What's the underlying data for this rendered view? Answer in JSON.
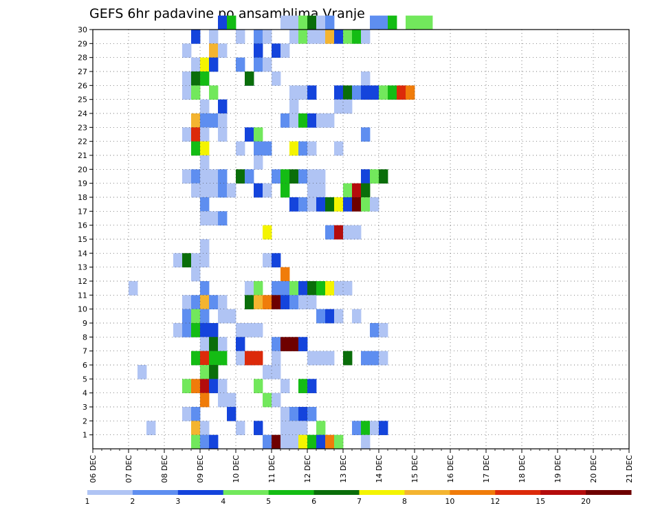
{
  "chart_data": {
    "type": "heatmap",
    "title": "GEFS 6hr padavine po ansamblima Vranje",
    "xlabel": "",
    "ylabel": "",
    "x_ticks": [
      "06 DEC",
      "07 DEC",
      "08 DEC",
      "09 DEC",
      "10 DEC",
      "11 DEC",
      "12 DEC",
      "13 DEC",
      "14 DEC",
      "15 DEC",
      "16 DEC",
      "17 DEC",
      "18 DEC",
      "19 DEC",
      "20 DEC",
      "21 DEC"
    ],
    "y_ticks": [
      "1",
      "2",
      "3",
      "4",
      "5",
      "6",
      "7",
      "8",
      "9",
      "10",
      "11",
      "12",
      "13",
      "14",
      "15",
      "16",
      "17",
      "18",
      "19",
      "20",
      "21",
      "22",
      "23",
      "24",
      "25",
      "26",
      "27",
      "28",
      "29",
      "30"
    ],
    "x_range_days": [
      0,
      15
    ],
    "y_range": [
      0,
      30
    ],
    "time_step_hours": 6,
    "grid": "dotted",
    "colorbar": {
      "labels": [
        "1",
        "2",
        "3",
        "4",
        "5",
        "6",
        "7",
        "8",
        "10",
        "12",
        "15",
        "20"
      ],
      "colors": [
        "#b0c4f4",
        "#5e8ef0",
        "#1444dc",
        "#72e85c",
        "#14bc14",
        "#0a6e0a",
        "#f4f400",
        "#f4b430",
        "#f07c0a",
        "#dc2a0a",
        "#b40c0c",
        "#6e0000"
      ]
    },
    "cells": [
      [
        30,
        14,
        2
      ],
      [
        30,
        15,
        4
      ],
      [
        30,
        21,
        0
      ],
      [
        30,
        22,
        0
      ],
      [
        30,
        23,
        3
      ],
      [
        30,
        24,
        5
      ],
      [
        30,
        25,
        0
      ],
      [
        30,
        26,
        1
      ],
      [
        30,
        31,
        1
      ],
      [
        30,
        32,
        1
      ],
      [
        30,
        33,
        4
      ],
      [
        30,
        35,
        3
      ],
      [
        30,
        36,
        3
      ],
      [
        30,
        37,
        3
      ],
      [
        29,
        11,
        2
      ],
      [
        29,
        13,
        0
      ],
      [
        29,
        16,
        0
      ],
      [
        29,
        18,
        1
      ],
      [
        29,
        19,
        0
      ],
      [
        29,
        22,
        0
      ],
      [
        29,
        23,
        3
      ],
      [
        29,
        24,
        0
      ],
      [
        29,
        25,
        0
      ],
      [
        29,
        26,
        7
      ],
      [
        29,
        27,
        2
      ],
      [
        29,
        28,
        3
      ],
      [
        29,
        29,
        4
      ],
      [
        29,
        30,
        0
      ],
      [
        28,
        10,
        0
      ],
      [
        28,
        13,
        7
      ],
      [
        28,
        14,
        0
      ],
      [
        28,
        18,
        2
      ],
      [
        28,
        20,
        2
      ],
      [
        28,
        21,
        0
      ],
      [
        27,
        11,
        0
      ],
      [
        27,
        12,
        6
      ],
      [
        27,
        13,
        2
      ],
      [
        27,
        16,
        1
      ],
      [
        27,
        18,
        1
      ],
      [
        27,
        19,
        0
      ],
      [
        26,
        10,
        0
      ],
      [
        26,
        11,
        5
      ],
      [
        26,
        12,
        0
      ],
      [
        26,
        12,
        4
      ],
      [
        26,
        17,
        2
      ],
      [
        26,
        17,
        5
      ],
      [
        26,
        20,
        0
      ],
      [
        26,
        30,
        0
      ],
      [
        25,
        10,
        0
      ],
      [
        25,
        11,
        3
      ],
      [
        25,
        13,
        3
      ],
      [
        25,
        22,
        0
      ],
      [
        25,
        23,
        0
      ],
      [
        25,
        24,
        2
      ],
      [
        25,
        27,
        2
      ],
      [
        25,
        28,
        5
      ],
      [
        25,
        29,
        1
      ],
      [
        25,
        30,
        2
      ],
      [
        25,
        31,
        2
      ],
      [
        25,
        32,
        3
      ],
      [
        25,
        33,
        4
      ],
      [
        25,
        34,
        9
      ],
      [
        25,
        35,
        8
      ],
      [
        24,
        12,
        0
      ],
      [
        24,
        14,
        2
      ],
      [
        24,
        22,
        0
      ],
      [
        24,
        27,
        0
      ],
      [
        24,
        28,
        0
      ],
      [
        23,
        11,
        3
      ],
      [
        23,
        11,
        7
      ],
      [
        23,
        12,
        5
      ],
      [
        23,
        12,
        1
      ],
      [
        23,
        13,
        1
      ],
      [
        23,
        14,
        0
      ],
      [
        23,
        21,
        1
      ],
      [
        23,
        22,
        0
      ],
      [
        23,
        23,
        4
      ],
      [
        23,
        24,
        2
      ],
      [
        23,
        25,
        0
      ],
      [
        23,
        26,
        0
      ],
      [
        22,
        10,
        0
      ],
      [
        22,
        11,
        9
      ],
      [
        22,
        12,
        0
      ],
      [
        22,
        14,
        0
      ],
      [
        22,
        17,
        2
      ],
      [
        22,
        18,
        3
      ],
      [
        22,
        30,
        1
      ],
      [
        21,
        11,
        4
      ],
      [
        21,
        12,
        6
      ],
      [
        21,
        16,
        0
      ],
      [
        21,
        18,
        1
      ],
      [
        21,
        19,
        1
      ],
      [
        21,
        22,
        6
      ],
      [
        21,
        23,
        1
      ],
      [
        21,
        24,
        0
      ],
      [
        21,
        27,
        0
      ],
      [
        20,
        12,
        0
      ],
      [
        20,
        18,
        0
      ],
      [
        19,
        10,
        0
      ],
      [
        19,
        11,
        1
      ],
      [
        19,
        12,
        0
      ],
      [
        19,
        13,
        0
      ],
      [
        19,
        14,
        1
      ],
      [
        19,
        16,
        5
      ],
      [
        19,
        17,
        1
      ],
      [
        19,
        20,
        1
      ],
      [
        19,
        21,
        4
      ],
      [
        19,
        22,
        5
      ],
      [
        19,
        23,
        1
      ],
      [
        19,
        24,
        0
      ],
      [
        19,
        25,
        0
      ],
      [
        19,
        30,
        2
      ],
      [
        19,
        31,
        3
      ],
      [
        19,
        32,
        5
      ],
      [
        18,
        11,
        0
      ],
      [
        18,
        12,
        0
      ],
      [
        18,
        13,
        0
      ],
      [
        18,
        14,
        1
      ],
      [
        18,
        15,
        0
      ],
      [
        18,
        18,
        2
      ],
      [
        18,
        19,
        0
      ],
      [
        18,
        21,
        4
      ],
      [
        18,
        24,
        0
      ],
      [
        18,
        25,
        0
      ],
      [
        18,
        28,
        3
      ],
      [
        18,
        29,
        10
      ],
      [
        18,
        30,
        5
      ],
      [
        17,
        12,
        1
      ],
      [
        17,
        22,
        2
      ],
      [
        17,
        23,
        1
      ],
      [
        17,
        24,
        0
      ],
      [
        17,
        25,
        2
      ],
      [
        17,
        26,
        5
      ],
      [
        17,
        27,
        6
      ],
      [
        17,
        28,
        2
      ],
      [
        17,
        29,
        11
      ],
      [
        17,
        30,
        3
      ],
      [
        17,
        31,
        0
      ],
      [
        16,
        12,
        0
      ],
      [
        16,
        13,
        0
      ],
      [
        16,
        14,
        1
      ],
      [
        15,
        19,
        6
      ],
      [
        15,
        26,
        1
      ],
      [
        15,
        27,
        10
      ],
      [
        15,
        28,
        0
      ],
      [
        15,
        29,
        0
      ],
      [
        14,
        12,
        0
      ],
      [
        13,
        9,
        0
      ],
      [
        13,
        10,
        5
      ],
      [
        13,
        11,
        0
      ],
      [
        13,
        12,
        0
      ],
      [
        13,
        19,
        0
      ],
      [
        13,
        20,
        2
      ],
      [
        12,
        11,
        0
      ],
      [
        12,
        21,
        8
      ],
      [
        11,
        4,
        0
      ],
      [
        11,
        12,
        1
      ],
      [
        11,
        17,
        0
      ],
      [
        11,
        18,
        3
      ],
      [
        11,
        20,
        1
      ],
      [
        11,
        21,
        1
      ],
      [
        11,
        22,
        3
      ],
      [
        11,
        23,
        2
      ],
      [
        11,
        24,
        5
      ],
      [
        11,
        25,
        4
      ],
      [
        11,
        26,
        6
      ],
      [
        11,
        27,
        0
      ],
      [
        11,
        28,
        0
      ],
      [
        10,
        10,
        0
      ],
      [
        10,
        11,
        1
      ],
      [
        10,
        12,
        7
      ],
      [
        10,
        13,
        1
      ],
      [
        10,
        14,
        0
      ],
      [
        10,
        17,
        5
      ],
      [
        10,
        18,
        7
      ],
      [
        10,
        19,
        8
      ],
      [
        10,
        20,
        11
      ],
      [
        10,
        21,
        2
      ],
      [
        10,
        22,
        1
      ],
      [
        10,
        23,
        0
      ],
      [
        10,
        24,
        0
      ],
      [
        9,
        10,
        1
      ],
      [
        9,
        11,
        3
      ],
      [
        9,
        12,
        1
      ],
      [
        9,
        14,
        0
      ],
      [
        9,
        15,
        0
      ],
      [
        9,
        25,
        1
      ],
      [
        9,
        26,
        2
      ],
      [
        9,
        27,
        0
      ],
      [
        9,
        29,
        0
      ],
      [
        8,
        9,
        0
      ],
      [
        8,
        10,
        1
      ],
      [
        8,
        11,
        4
      ],
      [
        8,
        12,
        2
      ],
      [
        8,
        13,
        2
      ],
      [
        8,
        16,
        0
      ],
      [
        8,
        17,
        0
      ],
      [
        8,
        18,
        0
      ],
      [
        8,
        31,
        1
      ],
      [
        8,
        32,
        0
      ],
      [
        7,
        12,
        0
      ],
      [
        7,
        13,
        5
      ],
      [
        7,
        14,
        0
      ],
      [
        7,
        16,
        2
      ],
      [
        7,
        20,
        1
      ],
      [
        7,
        21,
        11
      ],
      [
        7,
        22,
        11
      ],
      [
        7,
        23,
        2
      ],
      [
        6,
        11,
        4
      ],
      [
        6,
        12,
        9
      ],
      [
        6,
        13,
        4
      ],
      [
        6,
        14,
        4
      ],
      [
        6,
        16,
        0
      ],
      [
        6,
        17,
        1
      ],
      [
        6,
        17,
        9
      ],
      [
        6,
        18,
        9
      ],
      [
        6,
        20,
        0
      ],
      [
        6,
        24,
        0
      ],
      [
        6,
        25,
        0
      ],
      [
        6,
        26,
        0
      ],
      [
        6,
        28,
        5
      ],
      [
        6,
        30,
        1
      ],
      [
        6,
        31,
        1
      ],
      [
        6,
        32,
        0
      ],
      [
        5,
        5,
        0
      ],
      [
        5,
        12,
        3
      ],
      [
        5,
        13,
        5
      ],
      [
        5,
        19,
        0
      ],
      [
        5,
        20,
        0
      ],
      [
        4,
        10,
        3
      ],
      [
        4,
        11,
        0
      ],
      [
        4,
        11,
        8
      ],
      [
        4,
        12,
        10
      ],
      [
        4,
        13,
        2
      ],
      [
        4,
        14,
        0
      ],
      [
        4,
        18,
        3
      ],
      [
        4,
        21,
        0
      ],
      [
        4,
        23,
        4
      ],
      [
        4,
        24,
        2
      ],
      [
        3,
        12,
        8
      ],
      [
        3,
        14,
        0
      ],
      [
        3,
        15,
        0
      ],
      [
        3,
        19,
        3
      ],
      [
        3,
        20,
        0
      ],
      [
        2,
        10,
        0
      ],
      [
        2,
        11,
        1
      ],
      [
        2,
        15,
        2
      ],
      [
        2,
        21,
        0
      ],
      [
        2,
        22,
        1
      ],
      [
        2,
        23,
        2
      ],
      [
        2,
        24,
        1
      ],
      [
        1,
        6,
        0
      ],
      [
        1,
        11,
        7
      ],
      [
        1,
        12,
        0
      ],
      [
        1,
        16,
        0
      ],
      [
        1,
        18,
        2
      ],
      [
        1,
        21,
        0
      ],
      [
        1,
        22,
        0
      ],
      [
        1,
        23,
        0
      ],
      [
        1,
        25,
        3
      ],
      [
        1,
        29,
        1
      ],
      [
        1,
        30,
        4
      ],
      [
        1,
        31,
        0
      ],
      [
        1,
        32,
        2
      ],
      [
        0,
        11,
        3
      ],
      [
        0,
        12,
        1
      ],
      [
        0,
        13,
        2
      ],
      [
        0,
        19,
        1
      ],
      [
        0,
        20,
        11
      ],
      [
        0,
        21,
        0
      ],
      [
        0,
        22,
        0
      ],
      [
        0,
        23,
        6
      ],
      [
        0,
        24,
        4
      ],
      [
        0,
        25,
        2
      ],
      [
        0,
        26,
        8
      ],
      [
        0,
        27,
        3
      ],
      [
        0,
        30,
        0
      ]
    ]
  }
}
